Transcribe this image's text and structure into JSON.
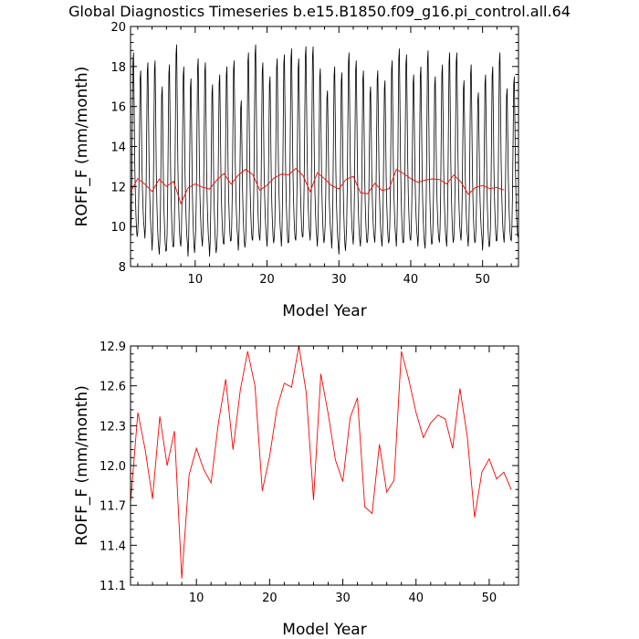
{
  "title": "Global Diagnostics Timeseries b.e15.B1850.f09_g16.pi_control.all.64",
  "colors": {
    "monthly": "#000000",
    "annual": "#ff0000",
    "axes": "#000000"
  },
  "chart_data": [
    {
      "type": "line",
      "xlabel": "Model Year",
      "ylabel": "ROFF_F (mm/month)",
      "xlim": [
        1,
        55
      ],
      "ylim": [
        8,
        20
      ],
      "xticks": [
        10,
        20,
        30,
        40,
        50
      ],
      "yticks": [
        8,
        10,
        12,
        14,
        16,
        18,
        20
      ],
      "grid": false,
      "series": [
        {
          "style": "monthly",
          "x_start": 1.0,
          "x_step": 0.0833333,
          "peaks": [
            18.7,
            17.8,
            18.2,
            18.3,
            17.0,
            18.1,
            19.1,
            18.0,
            17.4,
            18.4,
            18.2,
            17.1,
            17.6,
            18.0,
            18.3,
            16.3,
            18.7,
            19.1,
            18.2,
            17.5,
            18.4,
            18.6,
            18.9,
            18.4,
            19.0,
            19.0,
            17.9,
            16.8,
            18.0,
            17.7,
            18.7,
            18.3,
            17.8,
            17.0,
            17.8,
            17.3,
            18.3,
            18.9,
            18.6,
            17.6,
            18.0,
            18.8,
            17.5,
            18.1,
            18.7,
            18.7,
            17.3,
            18.1,
            16.7,
            17.6,
            18.0,
            18.7,
            16.9,
            17.5
          ],
          "troughs": [
            9.3,
            9.7,
            9.4,
            8.8,
            8.6,
            8.8,
            9.0,
            9.0,
            8.5,
            9.2,
            9.0,
            8.5,
            9.0,
            9.1,
            9.3,
            8.8,
            9.2,
            9.3,
            9.3,
            9.0,
            9.4,
            9.0,
            9.2,
            9.3,
            9.5,
            9.3,
            9.0,
            9.4,
            8.9,
            8.6,
            9.3,
            9.1,
            9.0,
            9.3,
            9.2,
            9.0,
            9.3,
            9.0,
            9.2,
            9.3,
            9.0,
            8.9,
            9.2,
            9.2,
            9.0,
            9.4,
            9.3,
            9.0,
            9.3,
            8.8,
            9.1,
            9.3,
            9.2,
            9.3
          ]
        },
        {
          "style": "annual",
          "x_start": 1,
          "x_step": 1,
          "values": [
            11.72,
            12.4,
            12.12,
            11.75,
            12.37,
            12.0,
            12.26,
            11.15,
            11.93,
            12.13,
            11.97,
            11.87,
            12.32,
            12.65,
            12.12,
            12.57,
            12.86,
            12.6,
            11.81,
            12.07,
            12.43,
            12.62,
            12.59,
            12.9,
            12.55,
            11.74,
            12.69,
            12.39,
            12.04,
            11.88,
            12.36,
            12.51,
            11.69,
            11.64,
            12.16,
            11.8,
            11.89,
            12.86,
            12.65,
            12.4,
            12.21,
            12.32,
            12.38,
            12.35,
            12.13,
            12.58,
            12.22,
            11.61,
            11.95,
            12.05,
            11.9,
            11.95,
            11.82
          ]
        }
      ]
    },
    {
      "type": "line",
      "xlabel": "Model Year",
      "ylabel": "ROFF_F (mm/month)",
      "xlim": [
        1,
        54
      ],
      "ylim": [
        11.1,
        12.9
      ],
      "xticks": [
        10,
        20,
        30,
        40,
        50
      ],
      "yticks": [
        11.1,
        11.4,
        11.7,
        12.0,
        12.3,
        12.6,
        12.9
      ],
      "grid": false,
      "series": [
        {
          "style": "annual",
          "x_start": 1,
          "x_step": 1,
          "values": [
            11.72,
            12.4,
            12.12,
            11.75,
            12.37,
            12.0,
            12.26,
            11.15,
            11.93,
            12.13,
            11.97,
            11.87,
            12.32,
            12.65,
            12.12,
            12.57,
            12.86,
            12.6,
            11.81,
            12.07,
            12.43,
            12.62,
            12.59,
            12.9,
            12.55,
            11.74,
            12.69,
            12.39,
            12.04,
            11.88,
            12.36,
            12.51,
            11.69,
            11.64,
            12.16,
            11.8,
            11.89,
            12.86,
            12.65,
            12.4,
            12.21,
            12.32,
            12.38,
            12.35,
            12.13,
            12.58,
            12.22,
            11.61,
            11.95,
            12.05,
            11.9,
            11.95,
            11.82
          ]
        }
      ]
    }
  ]
}
